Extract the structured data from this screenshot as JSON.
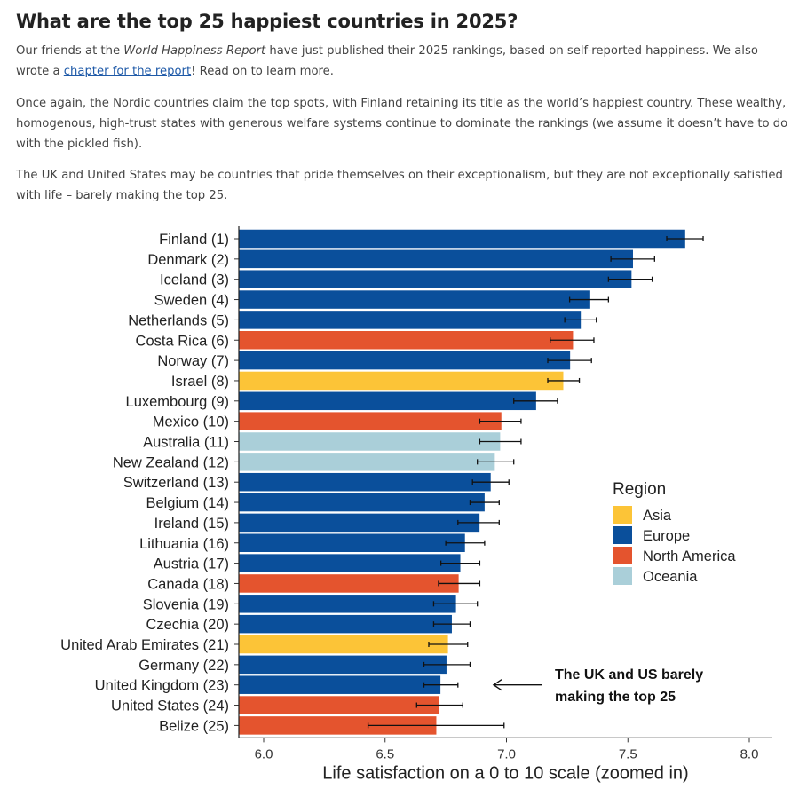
{
  "header": {
    "title": "What are the top 25 happiest countries in 2025?"
  },
  "intro": {
    "p1_pre": "Our friends at the ",
    "p1_report": "World Happiness Report",
    "p1_mid": " have just published their 2025 rankings, based on self-reported happiness. We also wrote a ",
    "p1_link": "chapter for the report",
    "p1_post": "! Read on to learn more.",
    "p2": "Once again, the Nordic countries claim the top spots, with Finland retaining its title as the world’s happiest country. These wealthy, homogenous, high-trust states with generous welfare systems continue to dominate the rankings (we assume it doesn’t have to do with the pickled fish).",
    "p3": "The UK and United States may be countries that pride themselves on their exceptionalism, but they are not exceptionally satisfied with life – barely making the top 25."
  },
  "chart_data": {
    "type": "bar",
    "orientation": "horizontal",
    "xlabel": "Life satisfaction on a 0 to 10 scale (zoomed in)",
    "xlim": [
      5.9,
      8.1
    ],
    "xticks": [
      6.0,
      6.5,
      7.0,
      7.5,
      8.0
    ],
    "xtick_labels": [
      "6.0",
      "6.5",
      "7.0",
      "7.5",
      "8.0"
    ],
    "legend_title": "Region",
    "legend": [
      {
        "name": "Asia",
        "color": "#fcc437"
      },
      {
        "name": "Europe",
        "color": "#0a4f9b"
      },
      {
        "name": "North America",
        "color": "#e4542e"
      },
      {
        "name": "Oceania",
        "color": "#aacfd9"
      }
    ],
    "annotation": {
      "line1": "The UK and US barely",
      "line2": "making the top 25",
      "arrow_to": "United Kingdom (23)"
    },
    "countries": [
      {
        "label": "Finland (1)",
        "value": 7.736,
        "low": 7.66,
        "high": 7.81,
        "region": "Europe"
      },
      {
        "label": "Denmark (2)",
        "value": 7.521,
        "low": 7.43,
        "high": 7.61,
        "region": "Europe"
      },
      {
        "label": "Iceland (3)",
        "value": 7.515,
        "low": 7.42,
        "high": 7.6,
        "region": "Europe"
      },
      {
        "label": "Sweden (4)",
        "value": 7.345,
        "low": 7.26,
        "high": 7.42,
        "region": "Europe"
      },
      {
        "label": "Netherlands (5)",
        "value": 7.306,
        "low": 7.24,
        "high": 7.37,
        "region": "Europe"
      },
      {
        "label": "Costa Rica (6)",
        "value": 7.274,
        "low": 7.18,
        "high": 7.36,
        "region": "North America"
      },
      {
        "label": "Norway (7)",
        "value": 7.262,
        "low": 7.17,
        "high": 7.35,
        "region": "Europe"
      },
      {
        "label": "Israel (8)",
        "value": 7.234,
        "low": 7.17,
        "high": 7.3,
        "region": "Asia"
      },
      {
        "label": "Luxembourg (9)",
        "value": 7.122,
        "low": 7.03,
        "high": 7.21,
        "region": "Europe"
      },
      {
        "label": "Mexico (10)",
        "value": 6.979,
        "low": 6.89,
        "high": 7.06,
        "region": "North America"
      },
      {
        "label": "Australia (11)",
        "value": 6.974,
        "low": 6.89,
        "high": 7.06,
        "region": "Oceania"
      },
      {
        "label": "New Zealand (12)",
        "value": 6.952,
        "low": 6.88,
        "high": 7.03,
        "region": "Oceania"
      },
      {
        "label": "Switzerland (13)",
        "value": 6.935,
        "low": 6.86,
        "high": 7.01,
        "region": "Europe"
      },
      {
        "label": "Belgium (14)",
        "value": 6.91,
        "low": 6.85,
        "high": 6.97,
        "region": "Europe"
      },
      {
        "label": "Ireland (15)",
        "value": 6.889,
        "low": 6.8,
        "high": 6.97,
        "region": "Europe"
      },
      {
        "label": "Lithuania (16)",
        "value": 6.829,
        "low": 6.75,
        "high": 6.91,
        "region": "Europe"
      },
      {
        "label": "Austria (17)",
        "value": 6.81,
        "low": 6.73,
        "high": 6.89,
        "region": "Europe"
      },
      {
        "label": "Canada (18)",
        "value": 6.803,
        "low": 6.72,
        "high": 6.89,
        "region": "North America"
      },
      {
        "label": "Slovenia (19)",
        "value": 6.792,
        "low": 6.7,
        "high": 6.88,
        "region": "Europe"
      },
      {
        "label": "Czechia (20)",
        "value": 6.775,
        "low": 6.7,
        "high": 6.85,
        "region": "Europe"
      },
      {
        "label": "United Arab Emirates (21)",
        "value": 6.759,
        "low": 6.68,
        "high": 6.84,
        "region": "Asia"
      },
      {
        "label": "Germany (22)",
        "value": 6.753,
        "low": 6.66,
        "high": 6.85,
        "region": "Europe"
      },
      {
        "label": "United Kingdom (23)",
        "value": 6.728,
        "low": 6.66,
        "high": 6.8,
        "region": "Europe"
      },
      {
        "label": "United States (24)",
        "value": 6.724,
        "low": 6.63,
        "high": 6.82,
        "region": "North America"
      },
      {
        "label": "Belize (25)",
        "value": 6.711,
        "low": 6.43,
        "high": 6.99,
        "region": "North America"
      }
    ]
  }
}
